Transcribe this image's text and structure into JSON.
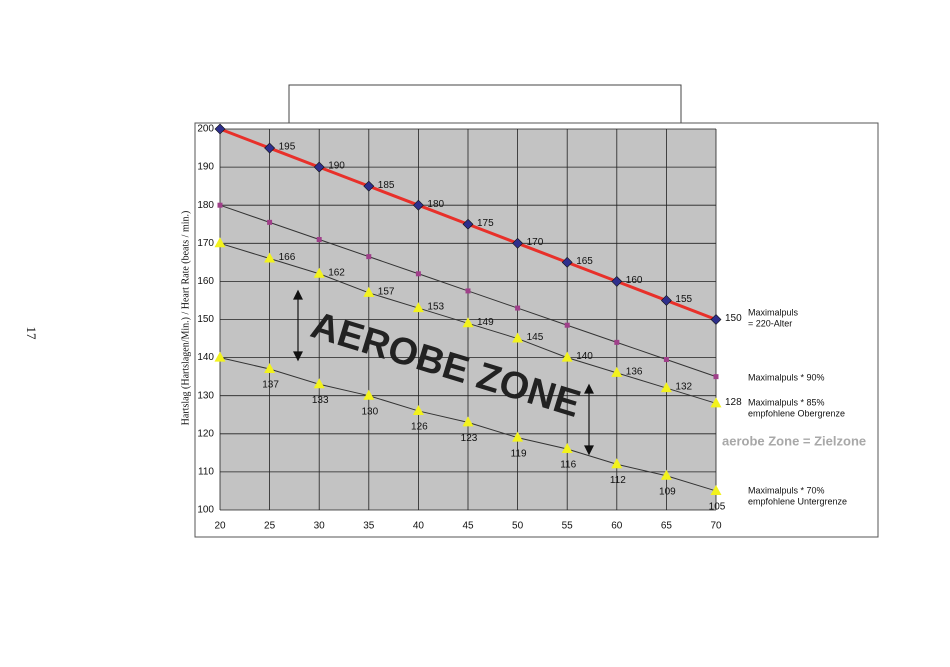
{
  "chart_data": {
    "type": "line",
    "page_number": "17",
    "y_label": "Hartslag (Hartslagen/Min.) / Heart Rate (beats / min.)",
    "zone_label": "AEROBE ZONE",
    "zone_note": "aerobe Zone = Zielzone",
    "x": [
      20,
      25,
      30,
      35,
      40,
      45,
      50,
      55,
      60,
      65,
      70
    ],
    "xlim": [
      20,
      70
    ],
    "xticks": [
      20,
      25,
      30,
      35,
      40,
      45,
      50,
      55,
      60,
      65,
      70
    ],
    "ylim": [
      100,
      200
    ],
    "yticks": [
      100,
      110,
      120,
      130,
      140,
      150,
      160,
      170,
      180,
      190,
      200
    ],
    "grid": true,
    "series": [
      {
        "name": "Maximalpuls",
        "note": "= 220-Alter",
        "color": "#e8302a",
        "marker": "diamond",
        "marker_color": "#2e2f8c",
        "label_position": "right",
        "values": [
          200,
          195,
          190,
          185,
          180,
          175,
          170,
          165,
          160,
          155,
          150
        ],
        "value_labels": [
          null,
          "195",
          "190",
          "185",
          "180",
          "175",
          "170",
          "165",
          "160",
          "155",
          "150"
        ]
      },
      {
        "name": "Maximalpuls * 90%",
        "color": "#333333",
        "marker": "square",
        "marker_color": "#a0408a",
        "values": [
          180,
          175.5,
          171,
          166.5,
          162,
          157.5,
          153,
          148.5,
          144,
          139.5,
          135
        ]
      },
      {
        "name": "Maximalpuls * 85%",
        "note": "empfohlene Obergrenze",
        "color": "#333333",
        "marker": "triangle",
        "marker_color": "#f2f21c",
        "label_position": "right",
        "values": [
          170,
          166,
          162,
          157,
          153,
          149,
          145,
          140,
          136,
          132,
          128
        ],
        "value_labels": [
          null,
          "166",
          "162",
          "157",
          "153",
          "149",
          "145",
          "140",
          "136",
          "132",
          "128"
        ]
      },
      {
        "name": "Maximalpuls * 70%",
        "note": "empfohlene Untergrenze",
        "color": "#333333",
        "marker": "triangle",
        "marker_color": "#f2f21c",
        "label_position": "below",
        "values": [
          140,
          137,
          133,
          130,
          126,
          123,
          119,
          116,
          112,
          109,
          105
        ],
        "value_labels": [
          null,
          "137",
          "133",
          "130",
          "126",
          "123",
          "119",
          "116",
          "112",
          "109",
          "105"
        ]
      }
    ]
  }
}
